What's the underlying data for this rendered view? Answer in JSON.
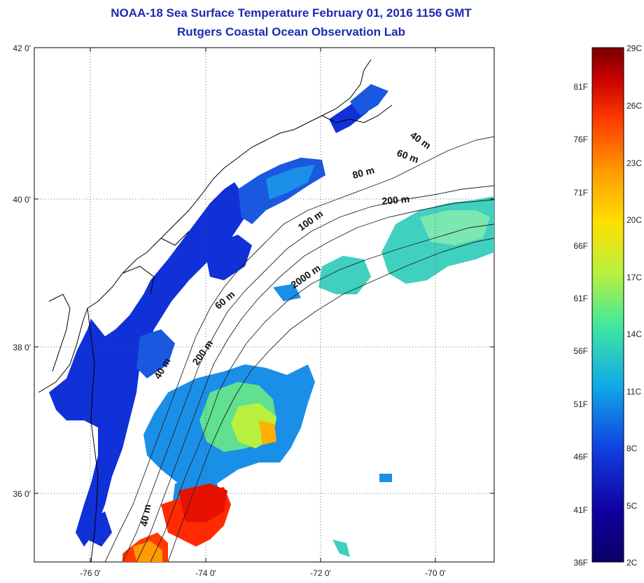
{
  "title_line1": "NOAA-18 Sea Surface Temperature February 01, 2016 1156 GMT",
  "title_line2": "Rutgers Coastal Ocean Observation Lab",
  "map": {
    "lat_labels": [
      "42 0'",
      "40 0'",
      "38 0'",
      "36 0'"
    ],
    "lon_labels": [
      "-76 0'",
      "-74 0'",
      "-72 0'",
      "-70 0'"
    ],
    "isobath_labels": [
      "40 m",
      "60 m",
      "80 m",
      "200 m",
      "100 m",
      "2000 m",
      "60 m",
      "200 m",
      "40 m",
      "40 m"
    ],
    "grid": "dotted"
  },
  "colorbar": {
    "fahrenheit_labels": [
      "81F",
      "76F",
      "71F",
      "66F",
      "61F",
      "56F",
      "51F",
      "46F",
      "41F",
      "36F"
    ],
    "celsius_labels": [
      "29C",
      "26C",
      "23C",
      "20C",
      "17C",
      "14C",
      "11C",
      "8C",
      "5C",
      "2C"
    ],
    "colors": [
      "#7a0000",
      "#c80000",
      "#ff3a00",
      "#ff9a00",
      "#ffe000",
      "#b8f040",
      "#40e8a0",
      "#10a8e8",
      "#1040e0",
      "#1000a0",
      "#0a0068"
    ]
  }
}
